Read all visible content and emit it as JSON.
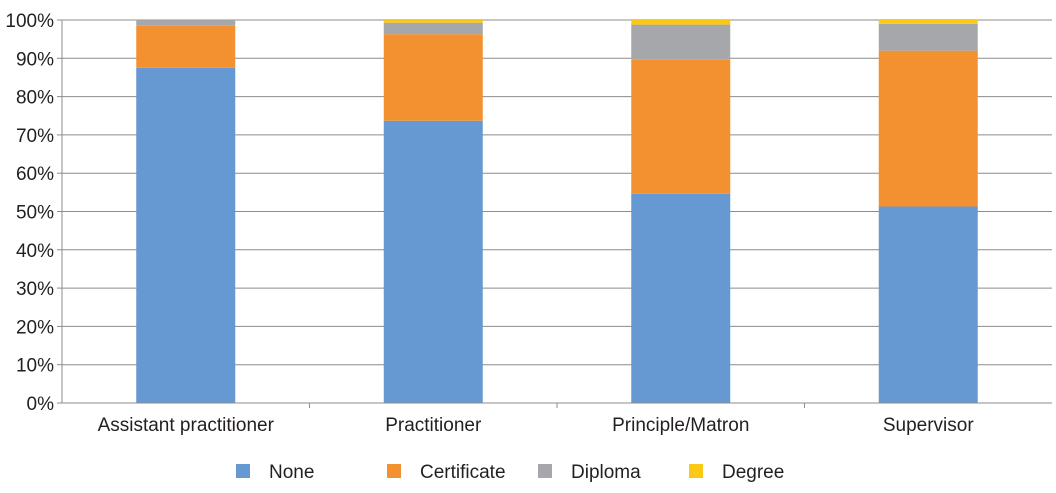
{
  "chart_data": {
    "type": "bar",
    "stacked": true,
    "categories": [
      "Assistant practitioner",
      "Practitioner",
      "Principle/Matron",
      "Supervisor"
    ],
    "series": [
      {
        "name": "None",
        "color": "#6699d1",
        "values": [
          87.5,
          73.7,
          54.6,
          51.3
        ]
      },
      {
        "name": "Certificate",
        "color": "#f39131",
        "values": [
          11.0,
          22.6,
          35.0,
          40.7
        ]
      },
      {
        "name": "Diploma",
        "color": "#a6a7ab",
        "values": [
          1.5,
          3.0,
          9.2,
          7.0
        ]
      },
      {
        "name": "Degree",
        "color": "#fcc816",
        "values": [
          0.0,
          0.7,
          1.2,
          1.0
        ]
      }
    ],
    "yticks": [
      "0%",
      "10%",
      "20%",
      "30%",
      "40%",
      "50%",
      "60%",
      "70%",
      "80%",
      "90%",
      "100%"
    ],
    "ylim": [
      0,
      100
    ],
    "grid": true,
    "legend_position": "bottom",
    "title": "",
    "xlabel": "",
    "ylabel": ""
  }
}
